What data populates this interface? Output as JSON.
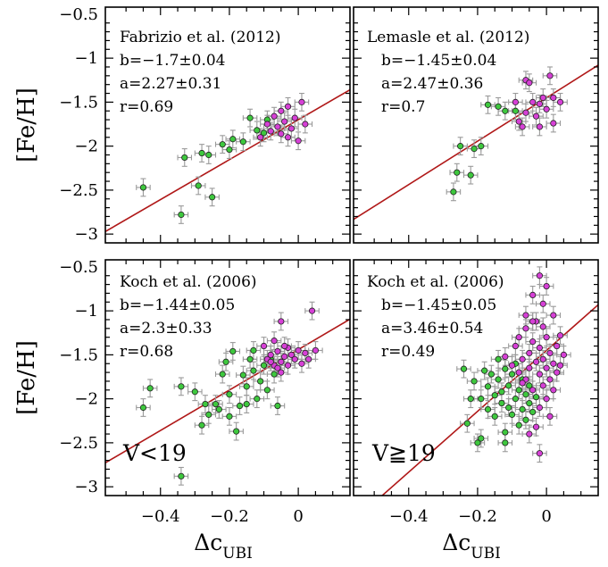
{
  "figure": {
    "ylabel": "[Fe/H]",
    "xlabel_main": "Δc",
    "xlabel_sub": "UBI",
    "x_ticks": [
      "−0.4",
      "−0.2",
      "0"
    ],
    "y_ticks": [
      "−0.5",
      "−1",
      "−1.5",
      "−2",
      "−2.5",
      "−3"
    ]
  },
  "colors": {
    "green": "#3ec83e",
    "magenta": "#d640d6",
    "fit_line": "#b01818",
    "error_bar": "#9a9a9a"
  },
  "chart_data": [
    {
      "type": "scatter",
      "panel": "top-left",
      "title": "Fabrizio et al. (2012)",
      "stats": [
        "b=−1.7±0.04",
        "a=2.27±0.31",
        "r=0.69"
      ],
      "fit": {
        "intercept": -1.7,
        "slope": 2.27
      },
      "xlim": [
        -0.56,
        0.15
      ],
      "ylim": [
        -3.1,
        -0.42
      ],
      "series": [
        {
          "color": "green",
          "points": [
            [
              -0.45,
              -2.47
            ],
            [
              -0.34,
              -2.78
            ],
            [
              -0.33,
              -2.13
            ],
            [
              -0.29,
              -2.45
            ],
            [
              -0.28,
              -2.08
            ],
            [
              -0.26,
              -2.1
            ],
            [
              -0.25,
              -2.58
            ],
            [
              -0.22,
              -1.98
            ],
            [
              -0.2,
              -2.04
            ],
            [
              -0.19,
              -1.92
            ],
            [
              -0.16,
              -1.95
            ],
            [
              -0.14,
              -1.68
            ],
            [
              -0.12,
              -1.82
            ],
            [
              -0.1,
              -1.85
            ],
            [
              -0.09,
              -1.7
            ]
          ]
        },
        {
          "color": "magenta",
          "points": [
            [
              -0.09,
              -1.75
            ],
            [
              -0.08,
              -1.83
            ],
            [
              -0.07,
              -1.66
            ],
            [
              -0.06,
              -1.78
            ],
            [
              -0.05,
              -1.6
            ],
            [
              -0.05,
              -1.86
            ],
            [
              -0.04,
              -1.72
            ],
            [
              -0.03,
              -1.55
            ],
            [
              -0.02,
              -1.8
            ],
            [
              -0.01,
              -1.68
            ],
            [
              0.0,
              -1.94
            ],
            [
              0.01,
              -1.5
            ],
            [
              0.02,
              -1.75
            ],
            [
              -0.11,
              -1.9
            ],
            [
              -0.03,
              -1.9
            ]
          ]
        }
      ]
    },
    {
      "type": "scatter",
      "panel": "top-right",
      "title": "Lemasle et al. (2012)",
      "stats": [
        "b=−1.45±0.04",
        "a=2.47±0.36",
        "r=0.7"
      ],
      "fit": {
        "intercept": -1.45,
        "slope": 2.47
      },
      "xlim": [
        -0.56,
        0.15
      ],
      "ylim": [
        -3.1,
        -0.42
      ],
      "series": [
        {
          "color": "green",
          "points": [
            [
              -0.27,
              -2.52
            ],
            [
              -0.26,
              -2.3
            ],
            [
              -0.25,
              -2.0
            ],
            [
              -0.22,
              -2.33
            ],
            [
              -0.21,
              -2.03
            ],
            [
              -0.19,
              -2.0
            ],
            [
              -0.17,
              -1.53
            ],
            [
              -0.14,
              -1.55
            ],
            [
              -0.12,
              -1.6
            ],
            [
              -0.09,
              -1.6
            ]
          ]
        },
        {
          "color": "magenta",
          "points": [
            [
              -0.08,
              -1.72
            ],
            [
              -0.07,
              -1.78
            ],
            [
              -0.06,
              -1.62
            ],
            [
              -0.06,
              -1.25
            ],
            [
              -0.05,
              -1.28
            ],
            [
              -0.04,
              -1.5
            ],
            [
              -0.03,
              -1.66
            ],
            [
              -0.02,
              -1.52
            ],
            [
              -0.02,
              -1.78
            ],
            [
              -0.01,
              -1.45
            ],
            [
              0.0,
              -1.58
            ],
            [
              0.01,
              -1.2
            ],
            [
              0.02,
              -1.45
            ],
            [
              0.02,
              -1.74
            ],
            [
              0.04,
              -1.5
            ],
            [
              -0.09,
              -1.5
            ]
          ]
        }
      ]
    },
    {
      "type": "scatter",
      "panel": "bottom-left",
      "title": "Koch et al. (2006)",
      "stats": [
        "b=−1.44±0.05",
        "a=2.3±0.33",
        "r=0.68"
      ],
      "subset_label": "V<19",
      "fit": {
        "intercept": -1.44,
        "slope": 2.3
      },
      "xlim": [
        -0.56,
        0.15
      ],
      "ylim": [
        -3.1,
        -0.42
      ],
      "series": [
        {
          "color": "green",
          "points": [
            [
              -0.45,
              -2.1
            ],
            [
              -0.43,
              -1.88
            ],
            [
              -0.34,
              -2.88
            ],
            [
              -0.34,
              -1.86
            ],
            [
              -0.3,
              -1.92
            ],
            [
              -0.28,
              -2.3
            ],
            [
              -0.27,
              -2.06
            ],
            [
              -0.26,
              -2.18
            ],
            [
              -0.24,
              -2.06
            ],
            [
              -0.23,
              -2.12
            ],
            [
              -0.22,
              -1.72
            ],
            [
              -0.21,
              -1.58
            ],
            [
              -0.2,
              -2.2
            ],
            [
              -0.2,
              -1.95
            ],
            [
              -0.19,
              -1.46
            ],
            [
              -0.18,
              -2.37
            ],
            [
              -0.17,
              -2.08
            ],
            [
              -0.16,
              -1.73
            ],
            [
              -0.15,
              -2.06
            ],
            [
              -0.15,
              -1.86
            ],
            [
              -0.14,
              -1.55
            ],
            [
              -0.13,
              -1.68
            ],
            [
              -0.12,
              -2.0
            ],
            [
              -0.11,
              -1.8
            ],
            [
              -0.1,
              -1.62
            ],
            [
              -0.09,
              -1.9
            ],
            [
              -0.08,
              -1.55
            ],
            [
              -0.07,
              -1.72
            ],
            [
              -0.13,
              -1.45
            ],
            [
              -0.06,
              -2.08
            ]
          ]
        },
        {
          "color": "magenta",
          "points": [
            [
              -0.1,
              -1.4
            ],
            [
              -0.09,
              -1.55
            ],
            [
              -0.08,
              -1.5
            ],
            [
              -0.07,
              -1.62
            ],
            [
              -0.07,
              -1.34
            ],
            [
              -0.06,
              -1.46
            ],
            [
              -0.05,
              -1.58
            ],
            [
              -0.05,
              -1.7
            ],
            [
              -0.04,
              -1.52
            ],
            [
              -0.03,
              -1.42
            ],
            [
              -0.03,
              -1.62
            ],
            [
              -0.02,
              -1.5
            ],
            [
              -0.01,
              -1.55
            ],
            [
              0.0,
              -1.45
            ],
            [
              0.01,
              -1.6
            ],
            [
              0.02,
              -1.48
            ],
            [
              0.03,
              -1.55
            ],
            [
              0.05,
              -1.45
            ],
            [
              0.04,
              -1.0
            ],
            [
              -0.05,
              -1.12
            ],
            [
              -0.06,
              -1.65
            ],
            [
              -0.04,
              -1.4
            ],
            [
              -0.08,
              -1.58
            ]
          ]
        }
      ]
    },
    {
      "type": "scatter",
      "panel": "bottom-right",
      "title": "Koch et al. (2006)",
      "stats": [
        "b=−1.45±0.05",
        "a=3.46±0.54",
        "r=0.49"
      ],
      "subset_label": "V≧19",
      "fit": {
        "intercept": -1.45,
        "slope": 3.46
      },
      "xlim": [
        -0.56,
        0.15
      ],
      "ylim": [
        -3.1,
        -0.42
      ],
      "series": [
        {
          "color": "green",
          "points": [
            [
              -0.24,
              -1.66
            ],
            [
              -0.23,
              -2.28
            ],
            [
              -0.22,
              -2.0
            ],
            [
              -0.21,
              -1.8
            ],
            [
              -0.2,
              -2.5
            ],
            [
              -0.19,
              -2.45
            ],
            [
              -0.18,
              -1.68
            ],
            [
              -0.17,
              -2.12
            ],
            [
              -0.17,
              -1.86
            ],
            [
              -0.16,
              -1.72
            ],
            [
              -0.15,
              -2.2
            ],
            [
              -0.14,
              -1.78
            ],
            [
              -0.14,
              -1.55
            ],
            [
              -0.13,
              -2.05
            ],
            [
              -0.13,
              -1.92
            ],
            [
              -0.12,
              -2.38
            ],
            [
              -0.12,
              -1.66
            ],
            [
              -0.11,
              -2.1
            ],
            [
              -0.11,
              -1.85
            ],
            [
              -0.1,
              -2.18
            ],
            [
              -0.1,
              -1.72
            ],
            [
              -0.09,
              -1.6
            ],
            [
              -0.09,
              -2.0
            ],
            [
              -0.08,
              -1.9
            ],
            [
              -0.08,
              -2.3
            ],
            [
              -0.07,
              -1.78
            ],
            [
              -0.07,
              -2.12
            ],
            [
              -0.06,
              -1.95
            ],
            [
              -0.06,
              -2.24
            ],
            [
              -0.05,
              -1.85
            ],
            [
              -0.05,
              -2.05
            ],
            [
              -0.04,
              -2.15
            ],
            [
              -0.03,
              -1.98
            ],
            [
              -0.15,
              -1.96
            ],
            [
              -0.19,
              -2.0
            ],
            [
              -0.12,
              -2.5
            ]
          ]
        },
        {
          "color": "magenta",
          "points": [
            [
              -0.12,
              -1.52
            ],
            [
              -0.1,
              -1.62
            ],
            [
              -0.09,
              -1.4
            ],
            [
              -0.08,
              -1.7
            ],
            [
              -0.08,
              -1.3
            ],
            [
              -0.07,
              -1.55
            ],
            [
              -0.06,
              -1.78
            ],
            [
              -0.06,
              -1.2
            ],
            [
              -0.05,
              -1.48
            ],
            [
              -0.05,
              -1.65
            ],
            [
              -0.04,
              -1.9
            ],
            [
              -0.04,
              -1.35
            ],
            [
              -0.03,
              -1.58
            ],
            [
              -0.03,
              -1.12
            ],
            [
              -0.03,
              -2.32
            ],
            [
              -0.02,
              -1.72
            ],
            [
              -0.02,
              -1.42
            ],
            [
              -0.02,
              -2.1
            ],
            [
              -0.01,
              -1.55
            ],
            [
              -0.01,
              -1.85
            ],
            [
              -0.01,
              -0.92
            ],
            [
              0.0,
              -1.65
            ],
            [
              0.0,
              -1.3
            ],
            [
              0.0,
              -2.0
            ],
            [
              0.01,
              -1.48
            ],
            [
              0.01,
              -1.78
            ],
            [
              0.02,
              -1.6
            ],
            [
              0.02,
              -1.05
            ],
            [
              0.03,
              -1.7
            ],
            [
              0.03,
              -1.4
            ],
            [
              0.04,
              -1.62
            ],
            [
              0.05,
              -1.5
            ],
            [
              -0.02,
              -0.6
            ],
            [
              -0.04,
              -0.82
            ],
            [
              0.0,
              -0.72
            ],
            [
              -0.05,
              -2.4
            ],
            [
              -0.02,
              -2.62
            ],
            [
              0.01,
              -2.2
            ],
            [
              -0.06,
              -1.05
            ],
            [
              0.02,
              -1.9
            ],
            [
              -0.04,
              -1.12
            ],
            [
              -0.07,
              -1.82
            ],
            [
              -0.01,
              -1.18
            ],
            [
              0.04,
              -1.28
            ]
          ]
        }
      ]
    }
  ]
}
